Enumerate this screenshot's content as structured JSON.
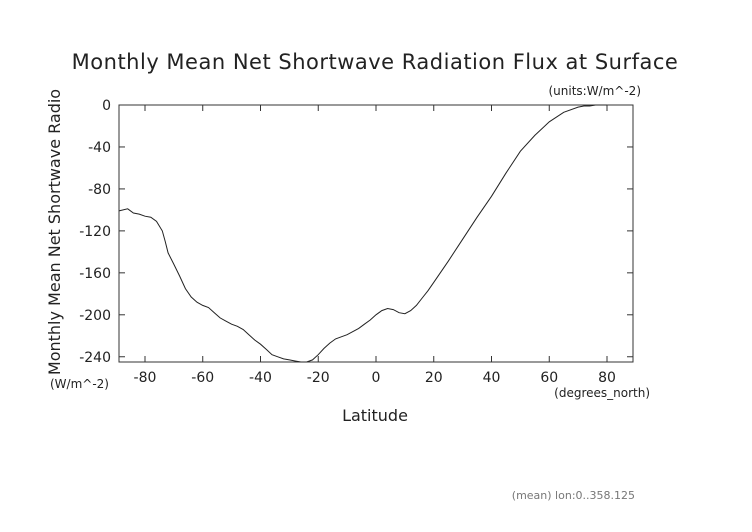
{
  "chart_data": {
    "type": "line",
    "title": "Monthly Mean Net Shortwave Radiation Flux at Surface",
    "units_note": "(units:W/m^-2)",
    "xlabel": "Latitude",
    "x_units": "(degrees_north)",
    "ylabel": "Monthly Mean Net Shortwave Radio",
    "y_units": "(W/m^-2)",
    "footnote": "(mean) lon:0..358.125",
    "xlim": [
      -89,
      89
    ],
    "ylim": [
      -245,
      0
    ],
    "x_ticks": [
      -80,
      -60,
      -40,
      -20,
      0,
      20,
      40,
      60,
      80
    ],
    "x_tick_labels": [
      "-80",
      "-60",
      "-40",
      "-20",
      "0",
      "20",
      "40",
      "60",
      "80"
    ],
    "y_ticks": [
      0,
      -40,
      -80,
      -120,
      -160,
      -200,
      -240
    ],
    "y_tick_labels": [
      "0",
      "-40",
      "-80",
      "-120",
      "-160",
      "-200",
      "-240"
    ],
    "grid": false,
    "series": [
      {
        "x": [
          -89,
          -86,
          -84,
          -82,
          -80,
          -78,
          -76,
          -74,
          -73,
          -72,
          -70,
          -68,
          -66,
          -64,
          -62,
          -60,
          -58,
          -56,
          -54,
          -52,
          -50,
          -48,
          -46,
          -44,
          -42,
          -40,
          -38,
          -36,
          -34,
          -32,
          -30,
          -28,
          -26,
          -24,
          -22,
          -20,
          -18,
          -16,
          -14,
          -12,
          -10,
          -8,
          -6,
          -4,
          -2,
          0,
          2,
          4,
          6,
          8,
          10,
          12,
          14,
          16,
          18,
          20,
          25,
          30,
          35,
          40,
          45,
          50,
          55,
          60,
          65,
          70,
          72,
          74,
          76,
          78,
          80
        ],
        "y": [
          -101,
          -99,
          -103,
          -104,
          -106,
          -107,
          -111,
          -120,
          -130,
          -141,
          -152,
          -163,
          -175,
          -183,
          -188,
          -191,
          -193,
          -198,
          -203,
          -206,
          -209,
          -211,
          -214,
          -219,
          -224,
          -228,
          -233,
          -238,
          -240,
          -242,
          -243,
          -244,
          -245,
          -245,
          -243,
          -238,
          -232,
          -227,
          -223,
          -221,
          -219,
          -216,
          -213,
          -209,
          -205,
          -200,
          -196,
          -194,
          -195,
          -198,
          -199,
          -196,
          -191,
          -184,
          -177,
          -169,
          -149,
          -128,
          -107,
          -87,
          -65,
          -44,
          -29,
          -16,
          -7,
          -2,
          -1,
          -1,
          0,
          0,
          0
        ]
      }
    ]
  }
}
